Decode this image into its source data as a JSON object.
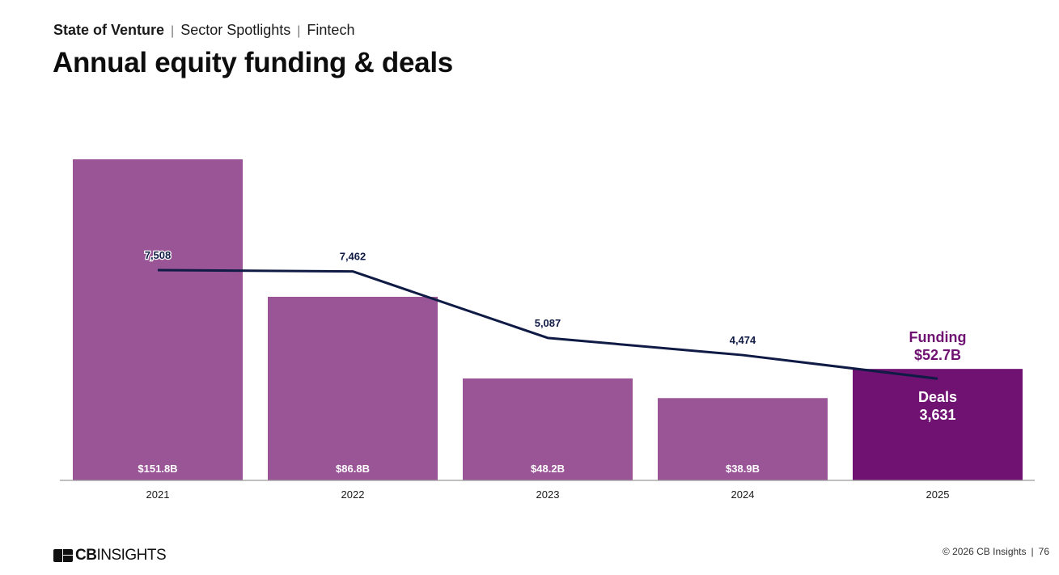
{
  "header": {
    "breadcrumb": [
      "State of Venture",
      "Sector Spotlights",
      "Fintech"
    ],
    "title": "Annual equity funding & deals"
  },
  "colors": {
    "bar": "#9a5596",
    "bar_highlight": "#6f1271",
    "line": "#0f1a45",
    "highlight_label": "#6f1271",
    "axis": "#9a9a9a"
  },
  "chart_data": {
    "type": "bar",
    "title": "Annual equity funding & deals",
    "categories": [
      "2021",
      "2022",
      "2023",
      "2024",
      "2025"
    ],
    "series": [
      {
        "name": "Funding",
        "type": "bar",
        "unit": "$B",
        "values": [
          151.8,
          86.8,
          48.2,
          38.9,
          52.7
        ],
        "labels": [
          "$151.8B",
          "$86.8B",
          "$48.2B",
          "$38.9B",
          "$52.7B"
        ]
      },
      {
        "name": "Deals",
        "type": "line",
        "values": [
          7508,
          7462,
          5087,
          4474,
          3631
        ],
        "labels": [
          "7,508",
          "7,462",
          "5,087",
          "4,474",
          "3,631"
        ]
      }
    ],
    "highlight": {
      "category": "2025",
      "funding_label": "Funding",
      "funding_value": "$52.7B",
      "deals_label": "Deals",
      "deals_value": "3,631"
    },
    "xlabel": "",
    "ylabel": "",
    "grid": false,
    "legend": "none"
  },
  "footer": {
    "logo_bold": "CB",
    "logo_rest": "INSIGHTS",
    "copyright": "© 2026 CB Insights",
    "page_number": "76"
  }
}
